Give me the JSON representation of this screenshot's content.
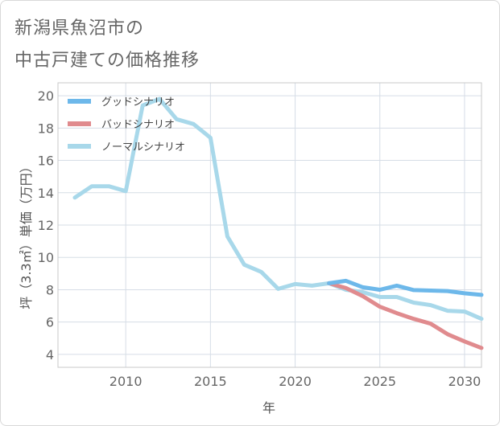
{
  "title_lines": [
    "新潟県魚沼市の",
    "中古戸建ての価格推移"
  ],
  "chart_data": {
    "type": "line",
    "title": "新潟県魚沼市の中古戸建ての価格推移",
    "xlabel": "年",
    "ylabel": "坪（3.3㎡）単価（万円）",
    "xlim": [
      2006,
      2031
    ],
    "ylim": [
      3.2,
      20.8
    ],
    "xticks": [
      2010,
      2015,
      2020,
      2025,
      2030
    ],
    "yticks": [
      4,
      6,
      8,
      10,
      12,
      14,
      16,
      18,
      20
    ],
    "grid": true,
    "legend_position": "top-left",
    "series": [
      {
        "name": "グッドシナリオ",
        "color": "#6db8ea",
        "x": [
          2022,
          2023,
          2024,
          2025,
          2026,
          2027,
          2028,
          2029,
          2030,
          2031
        ],
        "values": [
          8.4,
          8.55,
          8.15,
          8.0,
          8.25,
          7.98,
          7.95,
          7.92,
          7.78,
          7.68
        ]
      },
      {
        "name": "バッドシナリオ",
        "color": "#e08b8e",
        "x": [
          2022,
          2023,
          2024,
          2025,
          2026,
          2027,
          2028,
          2029,
          2030,
          2031
        ],
        "values": [
          8.4,
          8.1,
          7.6,
          6.95,
          6.55,
          6.2,
          5.9,
          5.25,
          4.8,
          4.4
        ]
      },
      {
        "name": "ノーマルシナリオ",
        "color": "#a8d8ea",
        "x": [
          2007,
          2008,
          2009,
          2010,
          2011,
          2012,
          2013,
          2014,
          2015,
          2016,
          2017,
          2018,
          2019,
          2020,
          2021,
          2022,
          2023,
          2024,
          2025,
          2026,
          2027,
          2028,
          2029,
          2030,
          2031
        ],
        "values": [
          13.7,
          14.4,
          14.4,
          14.1,
          19.4,
          19.8,
          18.55,
          18.25,
          17.4,
          11.3,
          9.55,
          9.1,
          8.05,
          8.35,
          8.25,
          8.4,
          8.0,
          7.85,
          7.55,
          7.55,
          7.2,
          7.05,
          6.7,
          6.65,
          6.2
        ]
      }
    ]
  }
}
